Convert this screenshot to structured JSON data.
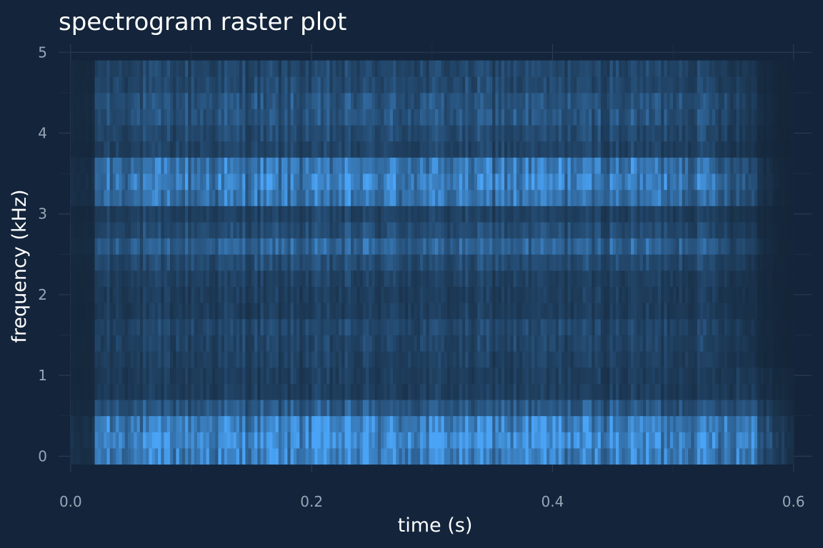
{
  "chart_data": {
    "type": "heatmap",
    "title": "spectrogram raster plot",
    "xlabel": "time (s)",
    "ylabel": "frequency (kHz)",
    "xlim": [
      -0.01,
      0.615
    ],
    "ylim": [
      -0.2,
      5.1
    ],
    "x_ticks": [
      0.0,
      0.2,
      0.4,
      0.6
    ],
    "x_tick_labels": [
      "0.0",
      "0.2",
      "0.4",
      "0.6"
    ],
    "y_ticks": [
      0,
      1,
      2,
      3,
      4,
      5
    ],
    "y_tick_labels": [
      "0",
      "1",
      "2",
      "3",
      "4",
      "5"
    ],
    "grid": true,
    "legend": "none",
    "colors": {
      "background": "#13243b",
      "low": "#142538",
      "high": "#4aa3f5",
      "grid": "#2a3a52"
    },
    "time_range": [
      0.0,
      0.6
    ],
    "time_step": 0.0025,
    "freq_bands_khz": [
      0.0,
      0.2,
      0.4,
      0.6,
      0.8,
      1.0,
      1.2,
      1.4,
      1.6,
      1.8,
      2.0,
      2.2,
      2.4,
      2.6,
      2.8,
      3.0,
      3.2,
      3.4,
      3.6,
      3.8,
      4.0,
      4.2,
      4.4,
      4.6,
      4.8
    ],
    "band_intensity": [
      0.85,
      0.95,
      0.85,
      0.45,
      0.22,
      0.22,
      0.25,
      0.28,
      0.3,
      0.22,
      0.22,
      0.25,
      0.35,
      0.55,
      0.35,
      0.25,
      0.7,
      0.82,
      0.72,
      0.28,
      0.33,
      0.42,
      0.42,
      0.32,
      0.3
    ],
    "signal_onset_s": 0.018,
    "signal_offset_s": 0.57
  }
}
